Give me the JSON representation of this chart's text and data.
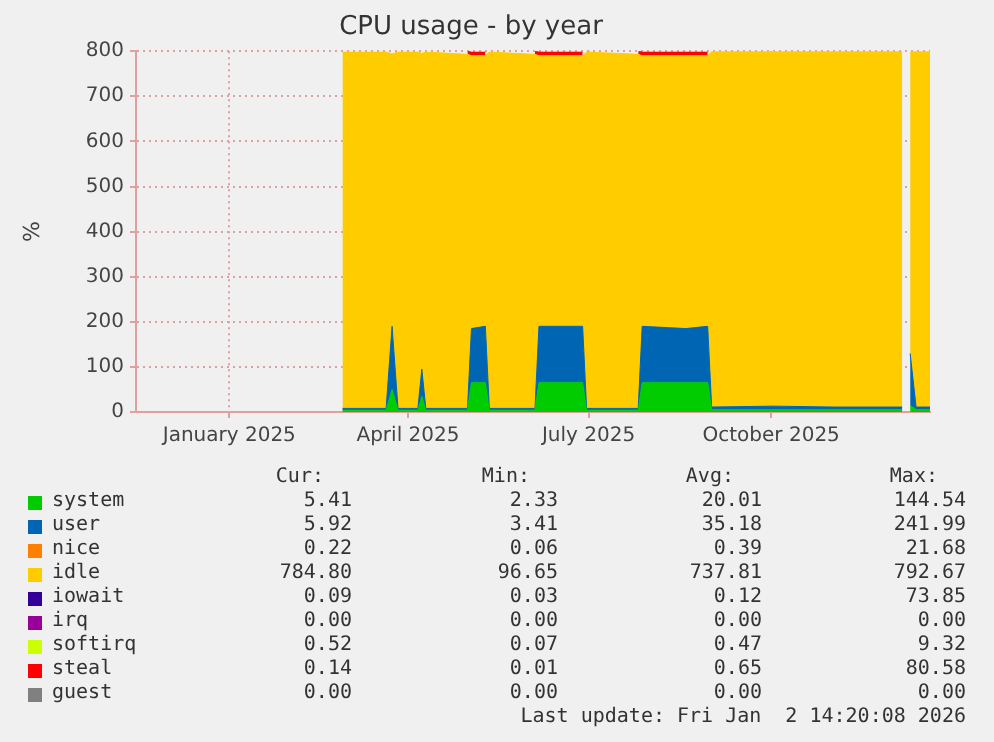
{
  "chart_data": {
    "type": "area",
    "title": "CPU usage - by year",
    "ylabel": "%",
    "stacked": true,
    "grid": true,
    "legend": "bottom",
    "xlim": [
      "2024-11-28",
      "2026-01-02"
    ],
    "xticks": [
      {
        "value": "2025-01-14",
        "label": "January 2025"
      },
      {
        "value": "2025-04-14",
        "label": "April 2025"
      },
      {
        "value": "2025-07-14",
        "label": "July 2025"
      },
      {
        "value": "2025-10-14",
        "label": "October 2025"
      }
    ],
    "ylim": [
      0,
      800
    ],
    "yticks": [
      0,
      100,
      200,
      300,
      400,
      500,
      600,
      700,
      800
    ],
    "x": [
      "2025-03-12",
      "2025-04-03",
      "2025-04-06",
      "2025-04-09",
      "2025-04-19",
      "2025-04-21",
      "2025-04-23",
      "2025-05-14",
      "2025-05-16",
      "2025-05-23",
      "2025-05-25",
      "2025-06-17",
      "2025-06-19",
      "2025-07-11",
      "2025-07-13",
      "2025-08-08",
      "2025-08-10",
      "2025-09-01",
      "2025-09-12",
      "2025-09-14",
      "2025-10-15",
      "2025-11-15",
      "2025-12-19",
      "2025-12-21",
      "2025-12-23",
      "2025-12-26",
      "2026-01-02"
    ],
    "series": [
      {
        "name": "system",
        "color": "#00cc00",
        "values": [
          4,
          4,
          50,
          4,
          4,
          35,
          4,
          4,
          65,
          65,
          4,
          4,
          65,
          65,
          4,
          4,
          65,
          65,
          65,
          5,
          5,
          5,
          5,
          null,
          15,
          5,
          5
        ]
      },
      {
        "name": "user",
        "color": "#0066b3",
        "values": [
          4,
          4,
          140,
          4,
          4,
          60,
          4,
          4,
          120,
          125,
          4,
          4,
          125,
          125,
          4,
          4,
          125,
          120,
          125,
          6,
          8,
          6,
          6,
          null,
          115,
          6,
          6
        ]
      },
      {
        "name": "nice",
        "color": "#ff8000",
        "values": [
          null,
          null,
          null,
          null,
          null,
          null,
          null,
          null,
          null,
          null,
          null,
          null,
          null,
          null,
          null,
          null,
          null,
          null,
          null,
          null,
          null,
          null,
          null,
          null,
          null,
          null,
          null
        ]
      },
      {
        "name": "idle",
        "color": "#ffcc00",
        "values": [
          790,
          790,
          604,
          790,
          790,
          700,
          790,
          785,
          605,
          600,
          790,
          785,
          600,
          600,
          790,
          785,
          600,
          605,
          600,
          788,
          786,
          788,
          788,
          null,
          668,
          788,
          788
        ]
      },
      {
        "name": "iowait",
        "color": "#330099",
        "values": [
          null,
          null,
          null,
          null,
          null,
          null,
          null,
          null,
          null,
          null,
          null,
          null,
          null,
          null,
          null,
          null,
          null,
          null,
          null,
          null,
          null,
          null,
          null,
          null,
          null,
          null,
          null
        ]
      },
      {
        "name": "irq",
        "color": "#990099",
        "values": [
          null,
          null,
          null,
          null,
          null,
          null,
          null,
          null,
          null,
          null,
          null,
          null,
          null,
          null,
          null,
          null,
          null,
          null,
          null,
          null,
          null,
          null,
          null,
          null,
          null,
          null,
          null
        ]
      },
      {
        "name": "softirq",
        "color": "#ccff00",
        "values": [
          null,
          null,
          null,
          null,
          null,
          null,
          null,
          null,
          null,
          null,
          null,
          null,
          null,
          null,
          null,
          null,
          null,
          null,
          null,
          null,
          null,
          null,
          null,
          null,
          null,
          null,
          null
        ]
      },
      {
        "name": "steal",
        "color": "#ff0000",
        "values": [
          null,
          null,
          null,
          null,
          null,
          null,
          null,
          8,
          8,
          8,
          null,
          8,
          8,
          8,
          null,
          8,
          8,
          8,
          8,
          null,
          null,
          null,
          null,
          null,
          null,
          null,
          null
        ]
      },
      {
        "name": "guest",
        "color": "#808080",
        "values": [
          null,
          null,
          null,
          null,
          null,
          null,
          null,
          null,
          null,
          null,
          null,
          null,
          null,
          null,
          null,
          null,
          null,
          null,
          null,
          null,
          null,
          null,
          null,
          null,
          null,
          null,
          null
        ]
      }
    ],
    "annotations": [
      "Cur:",
      "Min:",
      "Avg:",
      "Max:",
      "5.41",
      "2.33",
      "20.01",
      "144.54",
      "5.92",
      "3.41",
      "35.18",
      "241.99",
      "0.22",
      "0.06",
      "0.39",
      "21.68",
      "784.80",
      "96.65",
      "737.81",
      "792.67",
      "0.09",
      "0.03",
      "0.12",
      "73.85",
      "0.00",
      "0.00",
      "0.00",
      "0.00",
      "0.52",
      "0.07",
      "0.47",
      "9.32",
      "0.14",
      "0.01",
      "0.65",
      "80.58",
      "0.00",
      "0.00",
      "0.00",
      "0.00",
      "Last update: Fri Jan  2 14:20:08 2026"
    ]
  }
}
